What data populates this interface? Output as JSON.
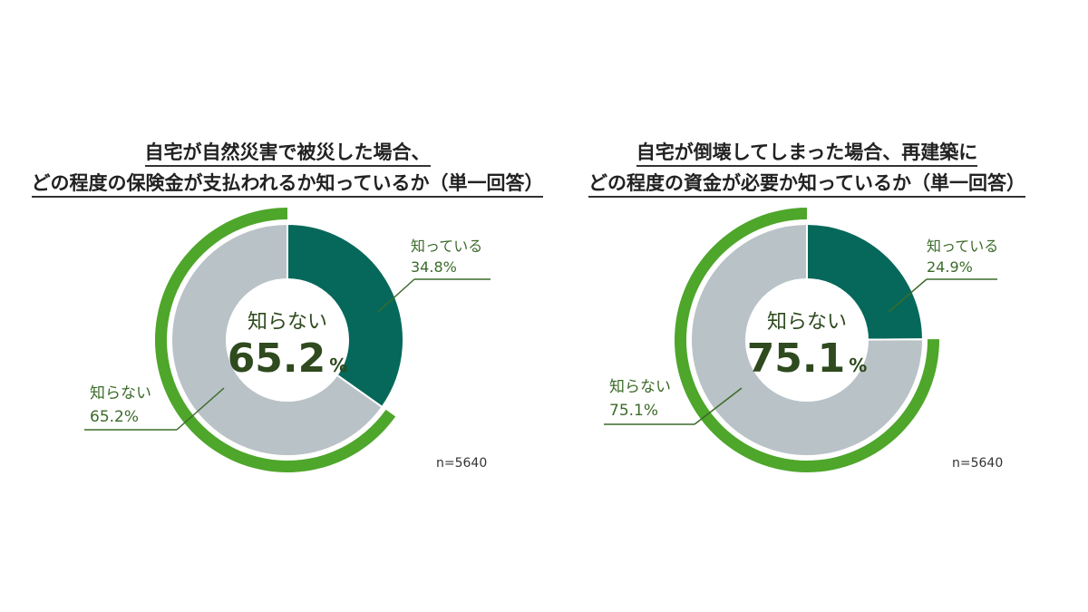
{
  "chart_data": [
    {
      "type": "pie",
      "title_lines": [
        "自宅が自然災害で被災した場合、",
        "どの程度の保険金が支払われるか知っているか（単一回答）"
      ],
      "slices": [
        {
          "label": "知っている",
          "value": 34.8,
          "display": "34.8%",
          "color": "#05685a"
        },
        {
          "label": "知らない",
          "value": 65.2,
          "display": "65.2%",
          "color": "#b9c2c7"
        }
      ],
      "center_label": "知らない",
      "center_value": "65.2",
      "center_unit": "%",
      "n_note": "n=5640",
      "highlight_color": "#4ea62b"
    },
    {
      "type": "pie",
      "title_lines": [
        "自宅が倒壊してしまった場合、再建築に",
        "どの程度の資金が必要か知っているか（単一回答）"
      ],
      "slices": [
        {
          "label": "知っている",
          "value": 24.9,
          "display": "24.9%",
          "color": "#05685a"
        },
        {
          "label": "知らない",
          "value": 75.1,
          "display": "75.1%",
          "color": "#b9c2c7"
        }
      ],
      "center_label": "知らない",
      "center_value": "75.1",
      "center_unit": "%",
      "n_note": "n=5640",
      "highlight_color": "#4ea62b"
    }
  ]
}
